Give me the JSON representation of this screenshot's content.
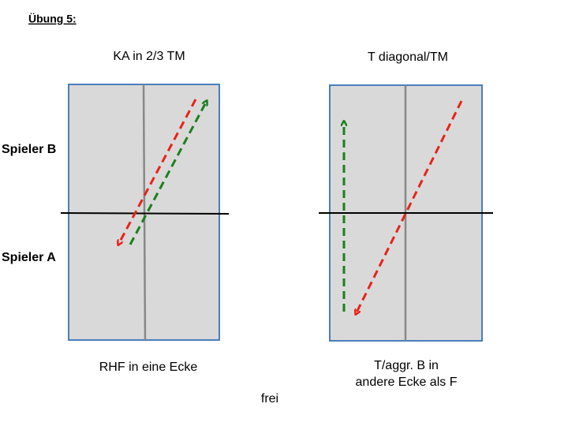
{
  "header": {
    "title": "Übung 5:"
  },
  "players": {
    "top": "Spieler B",
    "bottom": "Spieler A"
  },
  "diagrams": [
    {
      "heading": "KA in 2/3 TM",
      "caption": [
        "RHF in eine Ecke"
      ]
    },
    {
      "heading": "T diagonal/TM",
      "caption": [
        "T/aggr. B in",
        "andere Ecke als F"
      ]
    }
  ],
  "footer": {
    "note": "frei"
  }
}
